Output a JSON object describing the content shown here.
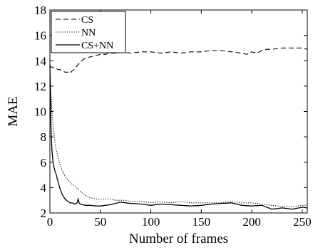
{
  "chart_data": {
    "type": "line",
    "title": "",
    "xlabel": "Number of frames",
    "ylabel": "MAE",
    "xlim": [
      0,
      255
    ],
    "ylim": [
      2,
      18
    ],
    "xticks": [
      0,
      50,
      100,
      150,
      200,
      250
    ],
    "yticks": [
      2,
      4,
      6,
      8,
      10,
      12,
      14,
      16,
      18
    ],
    "grid": false,
    "legend": "top-left",
    "series": [
      {
        "name": "CS",
        "style": "dashed",
        "x": [
          0,
          1,
          2,
          4,
          6,
          8,
          10,
          12,
          15,
          18,
          20,
          22,
          24,
          26,
          28,
          30,
          35,
          40,
          45,
          50,
          55,
          60,
          65,
          70,
          80,
          90,
          100,
          110,
          120,
          130,
          140,
          150,
          160,
          170,
          180,
          190,
          195,
          200,
          205,
          210,
          215,
          220,
          230,
          240,
          250,
          255
        ],
        "y": [
          13.6,
          13.5,
          13.5,
          13.4,
          13.4,
          13.3,
          13.3,
          13.2,
          13.1,
          13.1,
          13.0,
          13.2,
          13.3,
          13.5,
          13.7,
          13.9,
          14.2,
          14.3,
          14.4,
          14.5,
          14.5,
          14.6,
          14.6,
          14.7,
          14.6,
          14.7,
          14.7,
          14.6,
          14.7,
          14.6,
          14.7,
          14.7,
          14.8,
          14.8,
          14.7,
          14.6,
          14.5,
          14.7,
          14.6,
          14.8,
          14.9,
          14.9,
          15.0,
          15.0,
          15.0,
          14.9
        ]
      },
      {
        "name": "NN",
        "style": "dotted",
        "x": [
          0,
          1,
          2,
          3,
          4,
          5,
          6,
          8,
          10,
          12,
          15,
          18,
          20,
          25,
          30,
          35,
          40,
          45,
          50,
          55,
          60,
          65,
          70,
          75,
          80,
          90,
          100,
          110,
          120,
          130,
          140,
          150,
          160,
          170,
          180,
          190,
          200,
          210,
          220,
          230,
          240,
          250,
          255
        ],
        "y": [
          13.5,
          11.5,
          10.0,
          9.0,
          8.2,
          7.6,
          7.1,
          6.4,
          5.8,
          5.4,
          4.9,
          4.6,
          4.4,
          4.1,
          3.7,
          3.4,
          3.2,
          3.1,
          3.1,
          3.1,
          3.1,
          3.0,
          3.0,
          3.0,
          2.9,
          2.9,
          2.8,
          2.9,
          2.8,
          2.9,
          2.8,
          2.8,
          2.8,
          2.8,
          2.9,
          2.8,
          2.8,
          2.7,
          2.6,
          2.5,
          2.5,
          2.6,
          2.6
        ]
      },
      {
        "name": "CS+NN",
        "style": "solid",
        "x": [
          0,
          1,
          2,
          3,
          4,
          5,
          6,
          8,
          10,
          12,
          15,
          18,
          20,
          22,
          25,
          27,
          28,
          29,
          30,
          35,
          40,
          45,
          50,
          55,
          60,
          65,
          70,
          75,
          80,
          90,
          100,
          110,
          120,
          130,
          140,
          150,
          160,
          170,
          180,
          190,
          200,
          210,
          220,
          230,
          240,
          250,
          255
        ],
        "y": [
          13.7,
          9.0,
          7.0,
          6.1,
          5.6,
          5.3,
          5.1,
          4.5,
          3.9,
          3.5,
          3.1,
          2.9,
          2.8,
          2.8,
          2.7,
          2.8,
          3.1,
          2.8,
          2.7,
          2.6,
          2.6,
          2.55,
          2.55,
          2.6,
          2.65,
          2.75,
          2.85,
          2.8,
          2.75,
          2.7,
          2.6,
          2.7,
          2.65,
          2.6,
          2.55,
          2.6,
          2.7,
          2.75,
          2.8,
          2.6,
          2.55,
          2.6,
          2.3,
          2.4,
          2.3,
          2.45,
          2.4
        ]
      }
    ]
  }
}
